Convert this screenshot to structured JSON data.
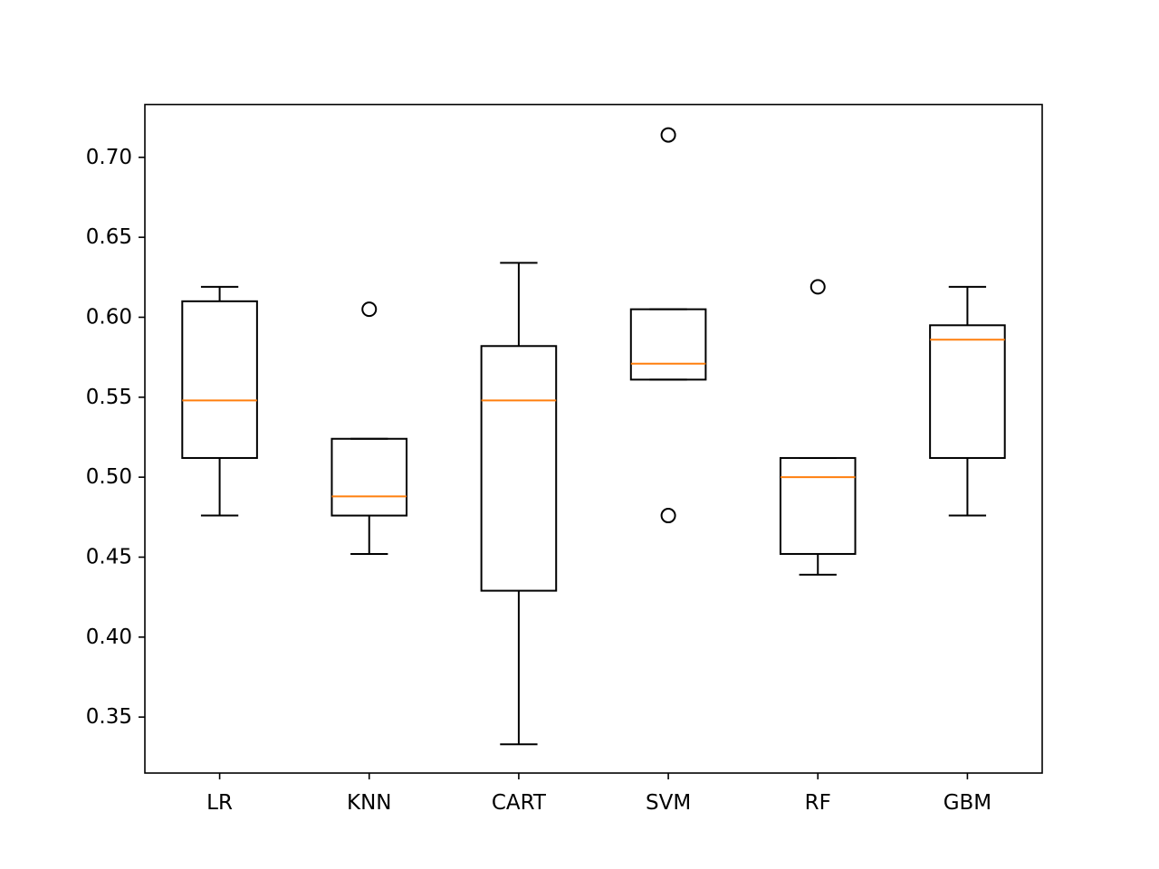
{
  "chart_data": {
    "type": "box",
    "title": "",
    "xlabel": "",
    "ylabel": "",
    "categories": [
      "LR",
      "KNN",
      "CART",
      "SVM",
      "RF",
      "GBM"
    ],
    "ylim": [
      0.315,
      0.733
    ],
    "yticks": [
      "0.35",
      "0.40",
      "0.45",
      "0.50",
      "0.55",
      "0.60",
      "0.65",
      "0.70"
    ],
    "grid": false,
    "legend": "none",
    "box_color": "#000000",
    "median_color": "#ff7f0e",
    "boxes": [
      {
        "label": "LR",
        "whisker_low": 0.476,
        "q1": 0.512,
        "median": 0.548,
        "q3": 0.61,
        "whisker_high": 0.619,
        "outliers": []
      },
      {
        "label": "KNN",
        "whisker_low": 0.452,
        "q1": 0.476,
        "median": 0.488,
        "q3": 0.524,
        "whisker_high": 0.524,
        "outliers": [
          0.605
        ]
      },
      {
        "label": "CART",
        "whisker_low": 0.333,
        "q1": 0.429,
        "median": 0.548,
        "q3": 0.582,
        "whisker_high": 0.634,
        "outliers": []
      },
      {
        "label": "SVM",
        "whisker_low": 0.561,
        "q1": 0.561,
        "median": 0.571,
        "q3": 0.605,
        "whisker_high": 0.605,
        "outliers": [
          0.714,
          0.476
        ]
      },
      {
        "label": "RF",
        "whisker_low": 0.439,
        "q1": 0.452,
        "median": 0.5,
        "q3": 0.512,
        "whisker_high": 0.512,
        "outliers": [
          0.619
        ]
      },
      {
        "label": "GBM",
        "whisker_low": 0.476,
        "q1": 0.512,
        "median": 0.586,
        "q3": 0.595,
        "whisker_high": 0.619,
        "outliers": []
      }
    ]
  }
}
